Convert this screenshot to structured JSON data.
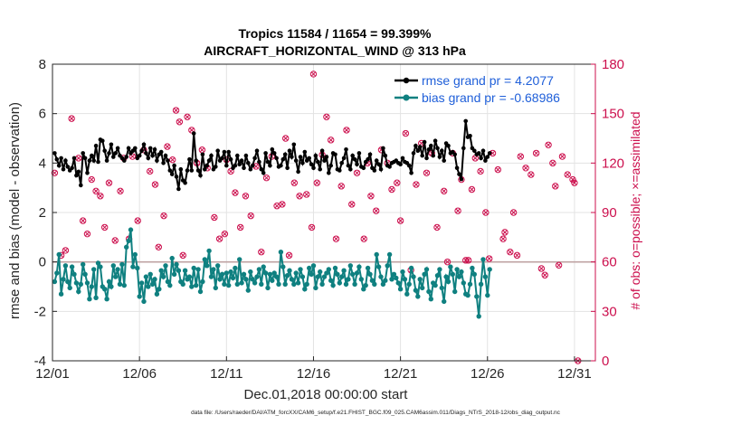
{
  "chart_data": {
    "type": "line",
    "title": "Tropics 11584 / 11654 = 99.399%",
    "subtitle": "AIRCRAFT_HORIZONTAL_WIND @ 313 hPa",
    "xlabel": "Dec.01,2018 00:00:00 start",
    "ylabel": "rmse and bias (model - observation)",
    "ylabel_right": "# of obs: o=possible; ×=assimilated",
    "footnote": "data file: /Users/raeder/DAI/ATM_forcXX/CAM6_setup/f.e21.FHIST_BGC.f09_025.CAM6assim.011/Diags_NTrS_2018-12/obs_diag_output.nc",
    "xlim": [
      1,
      32.2
    ],
    "ylim": [
      -4,
      8
    ],
    "ylim_right": [
      0,
      180
    ],
    "x_ticks": [
      1,
      6,
      11,
      16,
      21,
      26,
      31
    ],
    "x_tick_labels": [
      "12/01",
      "12/06",
      "12/11",
      "12/16",
      "12/21",
      "12/26",
      "12/31"
    ],
    "y_ticks": [
      -4,
      -2,
      0,
      2,
      4,
      6,
      8
    ],
    "y_tick_labels": [
      "-4",
      "-2",
      "0",
      "2",
      "4",
      "6",
      "8"
    ],
    "y_right_ticks": [
      0,
      30,
      60,
      90,
      120,
      150,
      180
    ],
    "y_right_tick_labels": [
      "0",
      "30",
      "60",
      "90",
      "120",
      "150",
      "180"
    ],
    "grid": true,
    "legend_position": "top-right",
    "x_step_days": 0.125,
    "series": [
      {
        "name": "rmse grand pr = 4.2077",
        "color": "#000000",
        "values": [
          4.4,
          4.15,
          3.9,
          4.2,
          3.75,
          4.1,
          3.85,
          3.7,
          3.8,
          4.2,
          3.5,
          3.65,
          3.1,
          4.4,
          4.2,
          3.6,
          4.1,
          4.3,
          4.1,
          4.7,
          4.05,
          4.95,
          4.9,
          4.5,
          4.1,
          4.4,
          4.75,
          4.25,
          4.4,
          4.6,
          4.3,
          4.2,
          4.1,
          4.25,
          4.6,
          4.4,
          4.5,
          4.6,
          4.2,
          4.3,
          4.5,
          4.75,
          4.4,
          4.2,
          4.6,
          4.3,
          4.55,
          4.1,
          4.35,
          4.45,
          4.0,
          4.3,
          4.1,
          3.7,
          3.55,
          3.9,
          3.45,
          2.95,
          3.75,
          3.3,
          3.2,
          3.7,
          4.15,
          3.7,
          5.2,
          4.1,
          3.7,
          3.5,
          4.35,
          3.75,
          3.9,
          4.1,
          4.3,
          3.75,
          3.85,
          4.5,
          4.1,
          4.2,
          4.45,
          3.9,
          4.45,
          4.15,
          3.8,
          3.9,
          4.3,
          3.95,
          4.1,
          3.8,
          4.3,
          4.0,
          3.75,
          3.9,
          4.2,
          4.5,
          4.05,
          3.75,
          3.6,
          4.4,
          4.05,
          3.9,
          4.55,
          4.4,
          4.2,
          3.85,
          3.9,
          4.15,
          4.35,
          3.8,
          4.5,
          4.25,
          4.75,
          4.1,
          3.65,
          4.25,
          4.0,
          4.45,
          4.1,
          4.2,
          3.95,
          3.8,
          4.3,
          4.05,
          3.75,
          4.5,
          4.1,
          4.25,
          3.6,
          3.9,
          4.4,
          4.35,
          3.75,
          3.7,
          4.0,
          4.2,
          4.55,
          3.9,
          3.75,
          4.3,
          4.15,
          3.95,
          4.4,
          3.85,
          3.8,
          4.05,
          4.15,
          4.35,
          3.8,
          3.7,
          4.1,
          3.95,
          3.75,
          4.6,
          4.3,
          3.9,
          3.85,
          4.0,
          4.05,
          4.1,
          4.0,
          3.95,
          4.2,
          4.05,
          4.0,
          3.9,
          3.6,
          4.4,
          4.7,
          4.5,
          4.65,
          4.3,
          4.85,
          4.2,
          4.55,
          4.7,
          4.3,
          4.9,
          4.6,
          4.25,
          4.5,
          4.1,
          4.8,
          4.7,
          4.4,
          4.45,
          4.35,
          3.8,
          3.55,
          3.35,
          4.6,
          5.7,
          5.05,
          5.1,
          4.6,
          4.5,
          4.35,
          4.4,
          4.2,
          4.5,
          4.1,
          4.25,
          4.4
        ]
      },
      {
        "name": "bias grand pr = -0.68986",
        "color": "#0f8080",
        "values": [
          -0.8,
          -0.45,
          0.3,
          -1.3,
          -0.7,
          -0.15,
          -0.8,
          -1.05,
          -0.2,
          -0.5,
          -0.85,
          -1.2,
          -0.9,
          -0.1,
          -0.5,
          -0.85,
          -1.5,
          -1.0,
          -0.3,
          -1.45,
          -0.05,
          -0.2,
          -1.0,
          -1.1,
          -1.5,
          -0.8,
          -1.0,
          -0.15,
          -0.6,
          -0.3,
          -0.9,
          -0.1,
          -0.95,
          0.6,
          0.85,
          1.3,
          -0.2,
          0.3,
          -0.25,
          -1.4,
          -0.85,
          -1.6,
          -0.6,
          -1.0,
          -0.5,
          -0.9,
          -0.7,
          -1.3,
          -1.1,
          -0.35,
          -0.6,
          -0.15,
          -0.8,
          -0.95,
          0.15,
          -0.5,
          -0.1,
          -0.35,
          -0.8,
          -0.9,
          -0.35,
          -0.7,
          -0.6,
          -1.0,
          -0.25,
          -0.95,
          -0.3,
          -1.2,
          -0.8,
          0.1,
          -0.15,
          0.45,
          -0.6,
          -0.3,
          -1.05,
          -0.15,
          -0.7,
          -0.5,
          -0.9,
          -0.45,
          -0.95,
          -0.4,
          -0.65,
          -0.25,
          -0.9,
          0.1,
          -0.85,
          -0.5,
          -0.7,
          -1.15,
          -0.4,
          -0.7,
          -0.85,
          -0.6,
          -0.3,
          -0.9,
          -0.2,
          -0.45,
          -1.05,
          -0.5,
          -0.75,
          -0.45,
          -0.6,
          -0.9,
          0.4,
          -0.2,
          -0.9,
          -0.55,
          -0.35,
          -0.7,
          -0.9,
          -0.45,
          -0.85,
          -0.3,
          -0.6,
          -1.1,
          -0.9,
          -0.25,
          -0.5,
          -0.15,
          -1.05,
          -0.6,
          -0.4,
          -0.9,
          -0.6,
          -0.45,
          -0.3,
          -0.75,
          -0.95,
          -0.25,
          -0.5,
          -0.85,
          -0.6,
          -0.35,
          -0.9,
          -0.7,
          -0.15,
          -0.5,
          -0.9,
          -0.45,
          -0.2,
          -0.7,
          -1.1,
          -0.95,
          -0.25,
          -0.5,
          -0.75,
          -0.9,
          0.3,
          -0.2,
          -0.6,
          -0.9,
          -0.75,
          -0.15,
          0.3,
          -0.7,
          -0.5,
          -0.65,
          -0.85,
          -1.1,
          -0.4,
          -0.7,
          -1.3,
          -0.9,
          -0.25,
          -0.6,
          -1.15,
          -1.4,
          -0.7,
          -1.05,
          -0.5,
          -0.3,
          -1.2,
          -1.5,
          -0.85,
          -0.95,
          -0.55,
          -0.3,
          -1.05,
          -1.6,
          -0.6,
          -0.8,
          -0.2,
          -0.5,
          -1.2,
          -0.3,
          -0.6,
          -0.4,
          -0.85,
          -1.3,
          -1.35,
          -0.9,
          -0.25,
          -0.5,
          -1.4,
          -2.2,
          -0.9,
          0.1,
          -0.6,
          -1.35,
          -0.3
        ]
      }
    ],
    "obs_points_right_axis": [
      [
        1.125,
        114
      ],
      [
        1.5,
        64
      ],
      [
        1.75,
        67
      ],
      [
        2.1,
        147
      ],
      [
        2.5,
        123
      ],
      [
        2.75,
        85
      ],
      [
        3.0,
        77
      ],
      [
        3.25,
        110
      ],
      [
        3.5,
        103
      ],
      [
        3.75,
        100
      ],
      [
        4.0,
        81
      ],
      [
        4.25,
        108
      ],
      [
        4.6,
        73
      ],
      [
        4.9,
        103
      ],
      [
        5.1,
        123
      ],
      [
        5.4,
        74
      ],
      [
        5.6,
        124
      ],
      [
        5.9,
        85
      ],
      [
        6.25,
        128
      ],
      [
        6.6,
        115
      ],
      [
        6.9,
        107
      ],
      [
        7.1,
        69
      ],
      [
        7.4,
        88
      ],
      [
        7.6,
        130
      ],
      [
        7.9,
        122
      ],
      [
        8.1,
        152
      ],
      [
        8.3,
        145
      ],
      [
        8.5,
        64
      ],
      [
        8.75,
        148
      ],
      [
        9.0,
        140
      ],
      [
        9.3,
        120
      ],
      [
        9.6,
        128
      ],
      [
        9.9,
        117
      ],
      [
        10.3,
        87
      ],
      [
        10.6,
        74
      ],
      [
        10.9,
        77
      ],
      [
        11.0,
        122
      ],
      [
        11.25,
        115
      ],
      [
        11.5,
        102
      ],
      [
        11.8,
        81
      ],
      [
        12.1,
        100
      ],
      [
        12.4,
        88
      ],
      [
        12.7,
        118
      ],
      [
        13.0,
        66
      ],
      [
        13.3,
        111
      ],
      [
        13.6,
        124
      ],
      [
        13.9,
        94
      ],
      [
        14.2,
        95
      ],
      [
        14.4,
        135
      ],
      [
        14.6,
        64
      ],
      [
        14.9,
        108
      ],
      [
        15.2,
        100
      ],
      [
        15.6,
        101
      ],
      [
        15.9,
        81
      ],
      [
        16.0,
        174
      ],
      [
        16.2,
        108
      ],
      [
        16.5,
        125
      ],
      [
        16.75,
        148
      ],
      [
        17.0,
        134
      ],
      [
        17.3,
        74
      ],
      [
        17.6,
        106
      ],
      [
        17.9,
        140
      ],
      [
        18.2,
        95
      ],
      [
        18.5,
        114
      ],
      [
        18.9,
        74
      ],
      [
        19.1,
        120
      ],
      [
        19.3,
        100
      ],
      [
        19.6,
        91
      ],
      [
        19.9,
        128
      ],
      [
        20.25,
        120
      ],
      [
        20.5,
        104
      ],
      [
        20.8,
        108
      ],
      [
        21.0,
        85
      ],
      [
        21.3,
        138
      ],
      [
        21.6,
        55
      ],
      [
        21.9,
        107
      ],
      [
        22.2,
        132
      ],
      [
        22.5,
        114
      ],
      [
        22.8,
        126
      ],
      [
        23.1,
        81
      ],
      [
        23.5,
        103
      ],
      [
        23.7,
        60
      ],
      [
        24.0,
        126
      ],
      [
        24.3,
        91
      ],
      [
        24.5,
        110
      ],
      [
        24.75,
        61
      ],
      [
        24.9,
        61
      ],
      [
        25.1,
        104
      ],
      [
        25.3,
        123
      ],
      [
        25.6,
        115
      ],
      [
        25.9,
        90
      ],
      [
        26.1,
        62
      ],
      [
        26.3,
        126
      ],
      [
        26.6,
        116
      ],
      [
        26.9,
        74
      ],
      [
        27.0,
        78
      ],
      [
        27.3,
        66
      ],
      [
        27.5,
        90
      ],
      [
        27.7,
        64
      ],
      [
        27.9,
        124
      ],
      [
        28.2,
        117
      ],
      [
        28.5,
        113
      ],
      [
        28.8,
        126
      ],
      [
        29.1,
        56
      ],
      [
        29.3,
        52
      ],
      [
        29.5,
        131
      ],
      [
        29.75,
        120
      ],
      [
        29.9,
        106
      ],
      [
        30.1,
        58
      ],
      [
        30.3,
        124
      ],
      [
        30.6,
        113
      ],
      [
        30.9,
        110
      ],
      [
        31.0,
        108
      ],
      [
        31.2,
        0
      ]
    ]
  }
}
